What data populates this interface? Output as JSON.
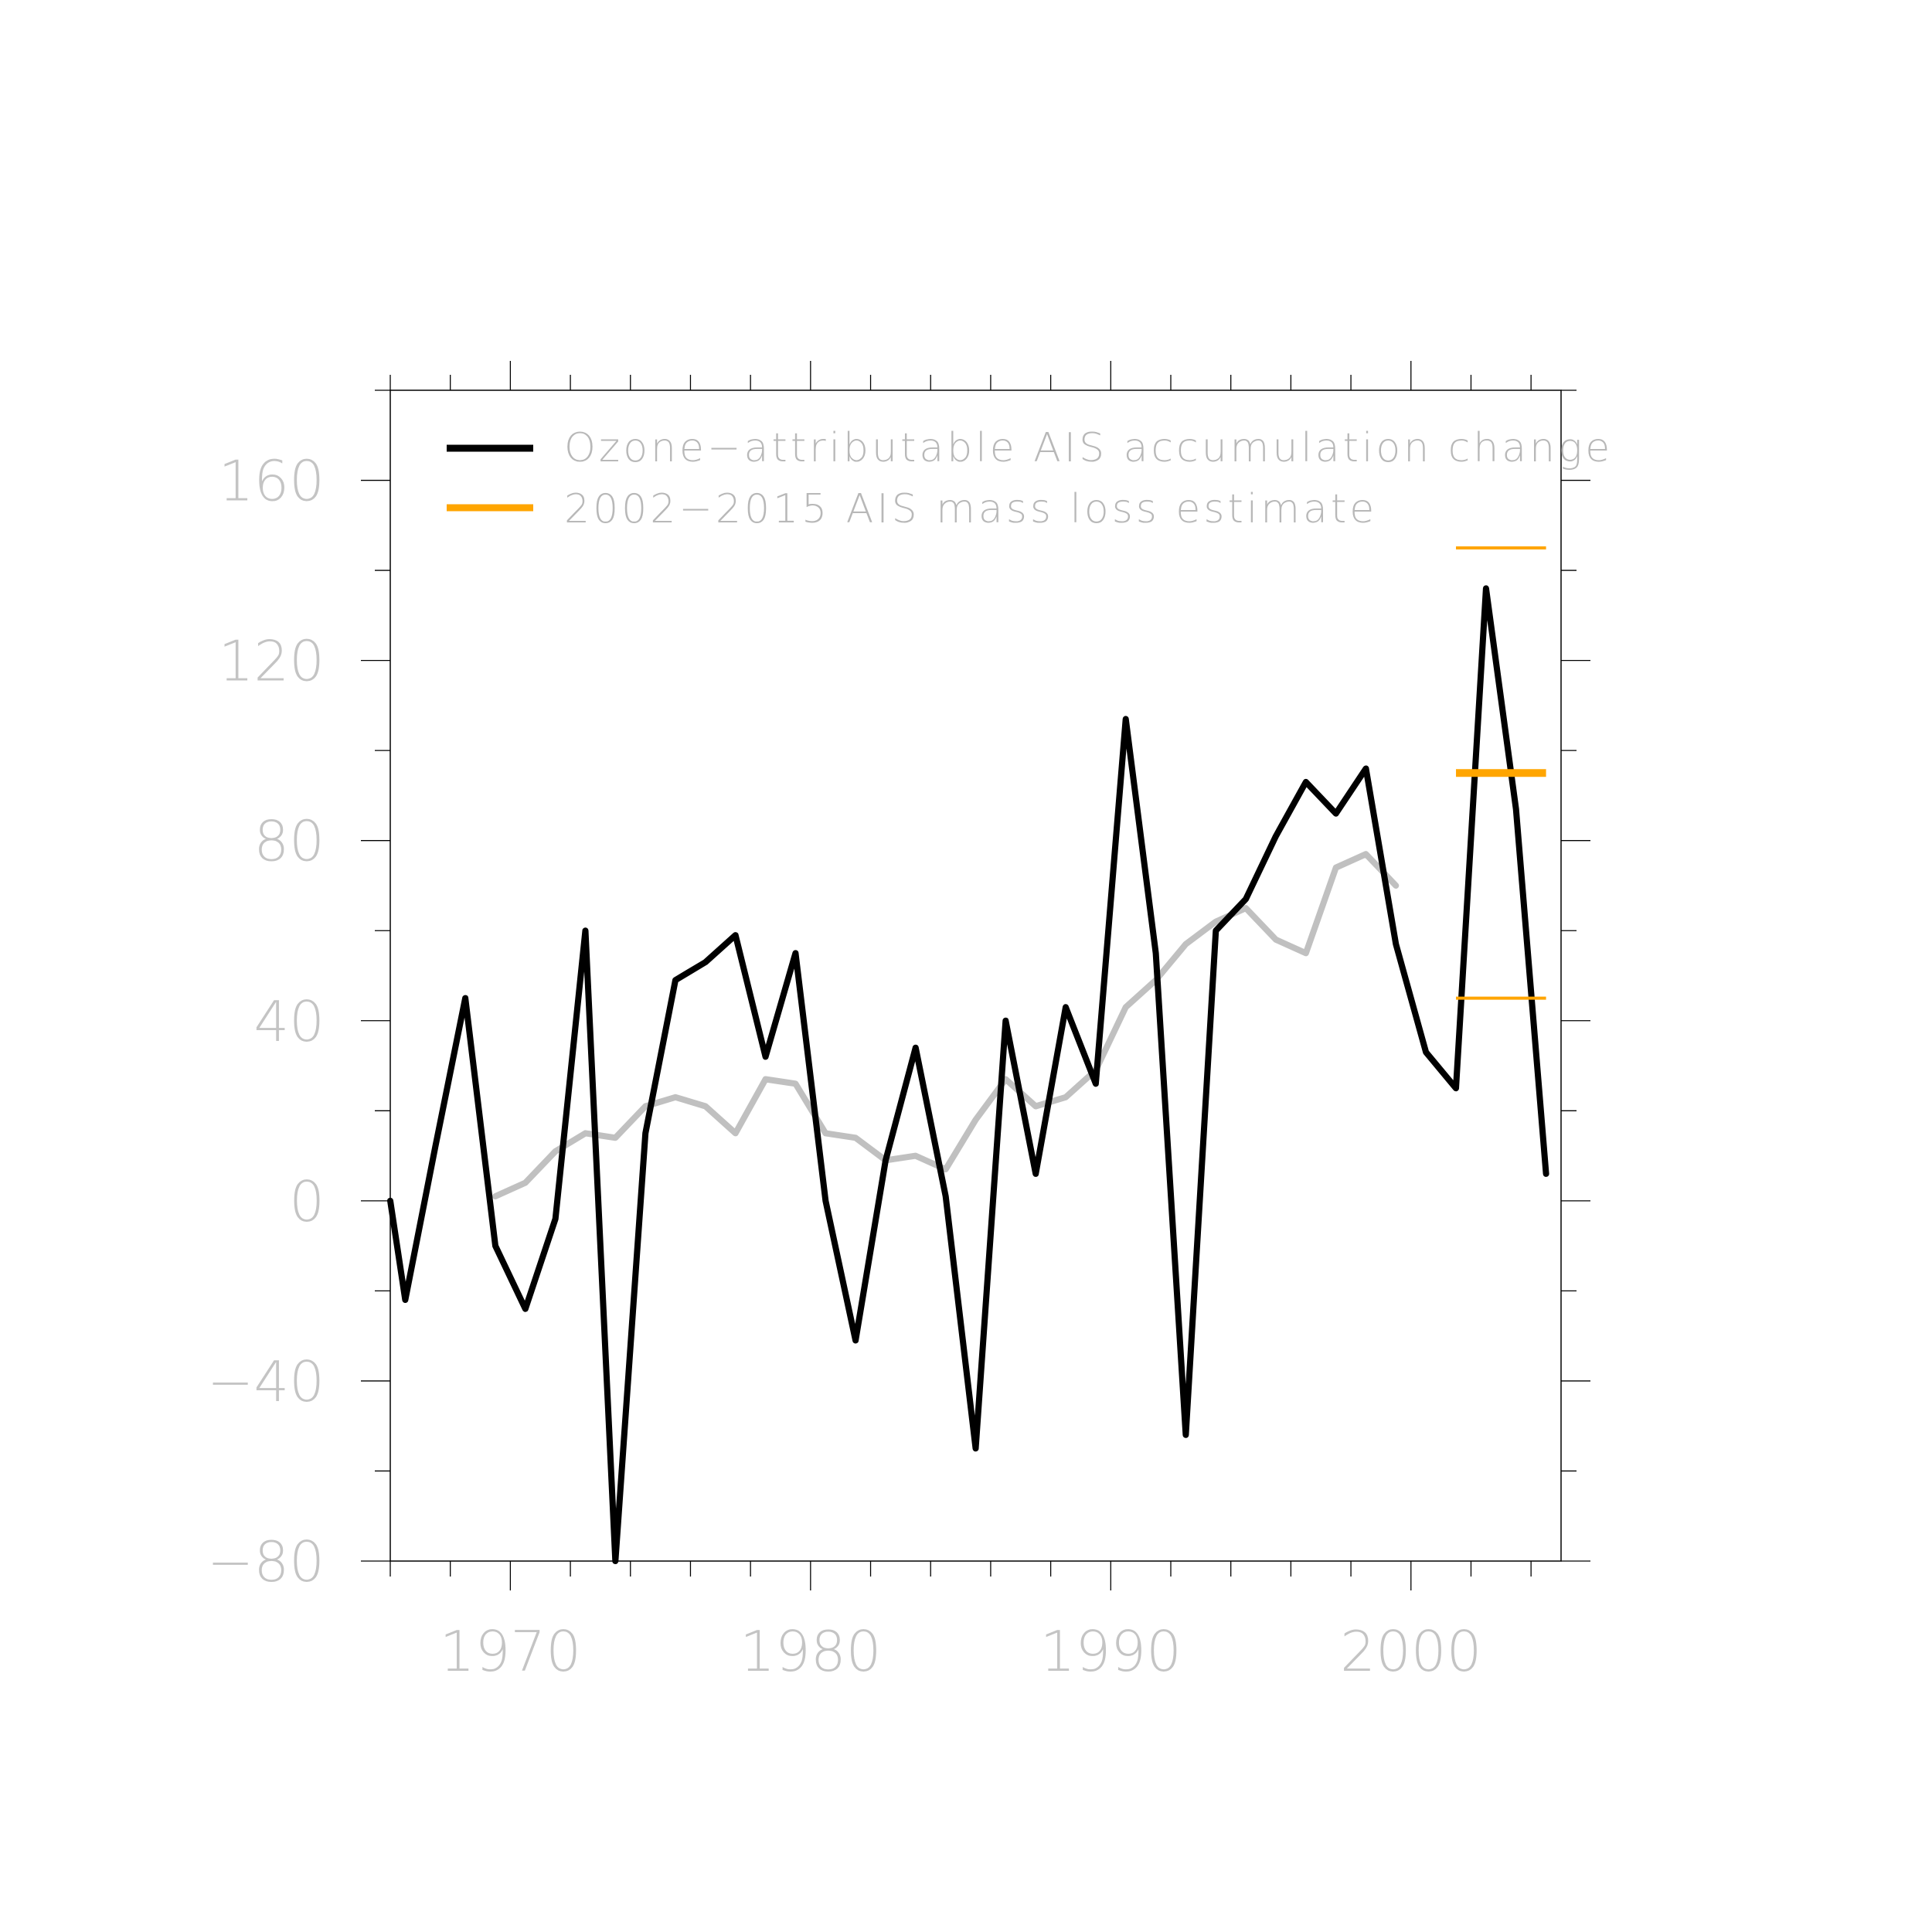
{
  "chart_data": {
    "type": "line",
    "title": "",
    "xlabel": "",
    "ylabel": "",
    "xlim": [
      1966,
      2005
    ],
    "ylim": [
      -80,
      180
    ],
    "x_ticks": [
      1970,
      1980,
      1990,
      2000
    ],
    "y_ticks": [
      -80,
      -40,
      0,
      40,
      80,
      120,
      160
    ],
    "x_tick_labels": [
      "1970",
      "1980",
      "1990",
      "2000"
    ],
    "y_tick_labels": [
      "−80",
      "−40",
      "0",
      "40",
      "80",
      "120",
      "160"
    ],
    "grid": false,
    "legend_position": "top-left",
    "legend": [
      {
        "label": "Ozone−attributable AIS accumulation change",
        "color": "#000000"
      },
      {
        "label": "2002−2015 AIS mass loss estimate",
        "color": "#ffa500"
      }
    ],
    "series": [
      {
        "name": "Ozone−attributable AIS accumulation change",
        "color": "#000000",
        "x": [
          1966,
          1966.5,
          1967.5,
          1968.5,
          1969.5,
          1970.5,
          1971.5,
          1972.5,
          1973.5,
          1974.5,
          1975.5,
          1976.5,
          1977.5,
          1978.5,
          1979.5,
          1980.5,
          1981.5,
          1982.5,
          1983.5,
          1984.5,
          1985.5,
          1986.5,
          1987.5,
          1988.5,
          1989.5,
          1990.5,
          1991.5,
          1992.5,
          1993.5,
          1994.5,
          1995.5,
          1996.5,
          1997.5,
          1998.5,
          1999.5,
          2000.5,
          2001.5,
          2002.5,
          2003.5,
          2004.5
        ],
        "y": [
          0,
          -22,
          12,
          45,
          -10,
          -24,
          -4,
          60,
          -80,
          15,
          49,
          53,
          59,
          32,
          55,
          0,
          -31,
          9,
          34,
          1,
          -55,
          40,
          6,
          43,
          26,
          107,
          55,
          -52,
          60,
          67,
          81,
          93,
          86,
          96,
          57,
          33,
          25,
          136,
          87,
          6
        ]
      },
      {
        "name": "",
        "color": "#c0c0c0",
        "x": [
          1969.5,
          1970.5,
          1971.5,
          1972.5,
          1973.5,
          1974.5,
          1975.5,
          1976.5,
          1977.5,
          1978.5,
          1979.5,
          1980.5,
          1981.5,
          1982.5,
          1983.5,
          1984.5,
          1985.5,
          1986.5,
          1987.5,
          1988.5,
          1989.5,
          1990.5,
          1991.5,
          1992.5,
          1993.5,
          1994.5,
          1995.5,
          1996.5,
          1997.5,
          1998.5,
          1999.5
        ],
        "y": [
          1,
          4,
          11,
          15,
          14,
          21,
          23,
          21,
          15,
          27,
          26,
          15,
          14,
          9,
          10,
          7,
          18,
          27,
          21,
          23,
          29,
          43,
          49,
          57,
          62,
          65,
          58,
          55,
          74,
          77,
          70
        ]
      }
    ],
    "mass_loss_estimate": {
      "name": "2002−2015 AIS mass loss estimate",
      "color": "#ffa500",
      "x_range": [
        2001.5,
        2004.5
      ],
      "central": 95,
      "upper": 145,
      "lower": 45
    }
  }
}
